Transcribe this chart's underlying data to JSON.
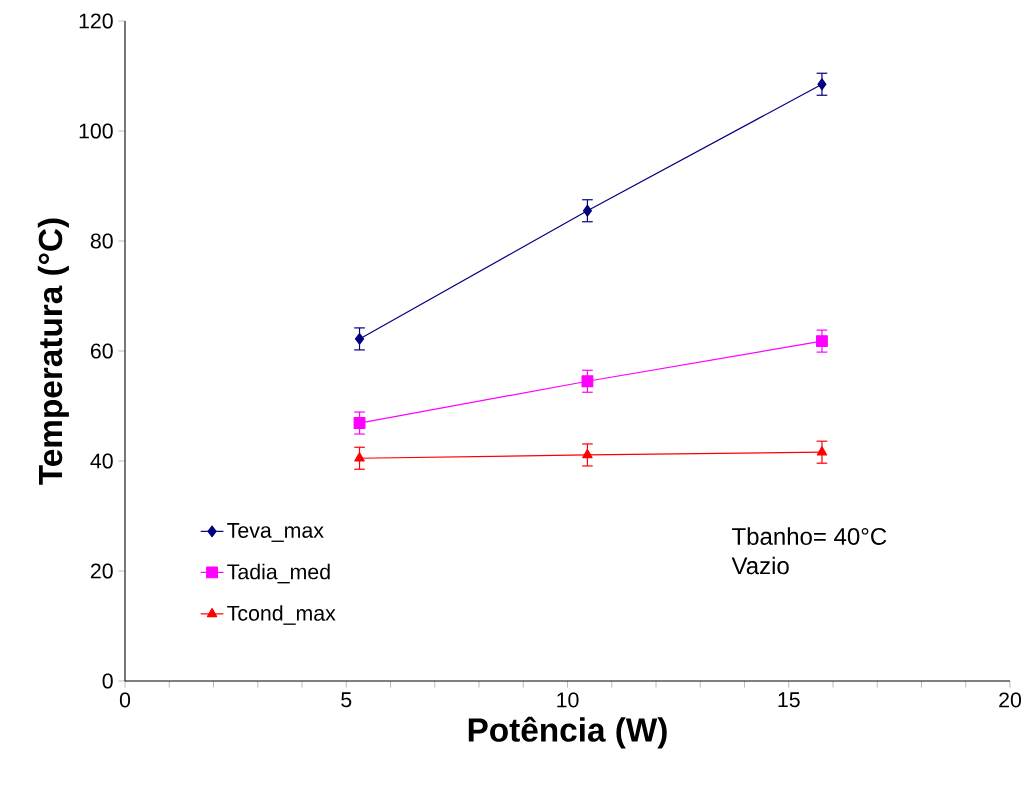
{
  "chart_data": {
    "type": "line",
    "xlabel": "Potência (W)",
    "ylabel": "Temperatura (°C)",
    "xlim": [
      0,
      20
    ],
    "ylim": [
      0,
      120
    ],
    "xticks": [
      0,
      {
        "value": 1,
        "label": null
      },
      {
        "value": 2,
        "label": null
      },
      {
        "value": 3,
        "label": null
      },
      {
        "value": 4,
        "label": null
      },
      5,
      {
        "value": 6,
        "label": null
      },
      {
        "value": 7,
        "label": null
      },
      {
        "value": 8,
        "label": null
      },
      {
        "value": 9,
        "label": null
      },
      10,
      {
        "value": 11,
        "label": null
      },
      {
        "value": 12,
        "label": null
      },
      {
        "value": 13,
        "label": null
      },
      {
        "value": 14,
        "label": null
      },
      15,
      {
        "value": 16,
        "label": null
      },
      {
        "value": 17,
        "label": null
      },
      {
        "value": 18,
        "label": null
      },
      {
        "value": 19,
        "label": null
      },
      20
    ],
    "yticks": [
      0,
      20,
      40,
      60,
      80,
      100,
      120
    ],
    "grid": false,
    "legend": "bottom left",
    "line_style": "solid",
    "annotations": [
      "Tbanho= 40°C",
      "Vazio"
    ],
    "series": [
      {
        "name": "Teva_max",
        "color": "#000080",
        "marker": "diamond",
        "x": [
          5.3,
          10.45,
          15.75
        ],
        "values": [
          62.2,
          85.5,
          108.5
        ],
        "errors": [
          2,
          2,
          2
        ]
      },
      {
        "name": "Tadia_med",
        "color": "#ff00ff",
        "marker": "square",
        "x": [
          5.3,
          10.45,
          15.75
        ],
        "values": [
          46.9,
          54.5,
          61.8
        ],
        "errors": [
          2,
          2,
          2
        ]
      },
      {
        "name": "Tcond_max",
        "color": "#ff0000",
        "marker": "triangle",
        "x": [
          5.3,
          10.45,
          15.75
        ],
        "values": [
          40.5,
          41.1,
          41.6
        ],
        "errors": [
          2,
          2,
          2
        ]
      }
    ]
  }
}
